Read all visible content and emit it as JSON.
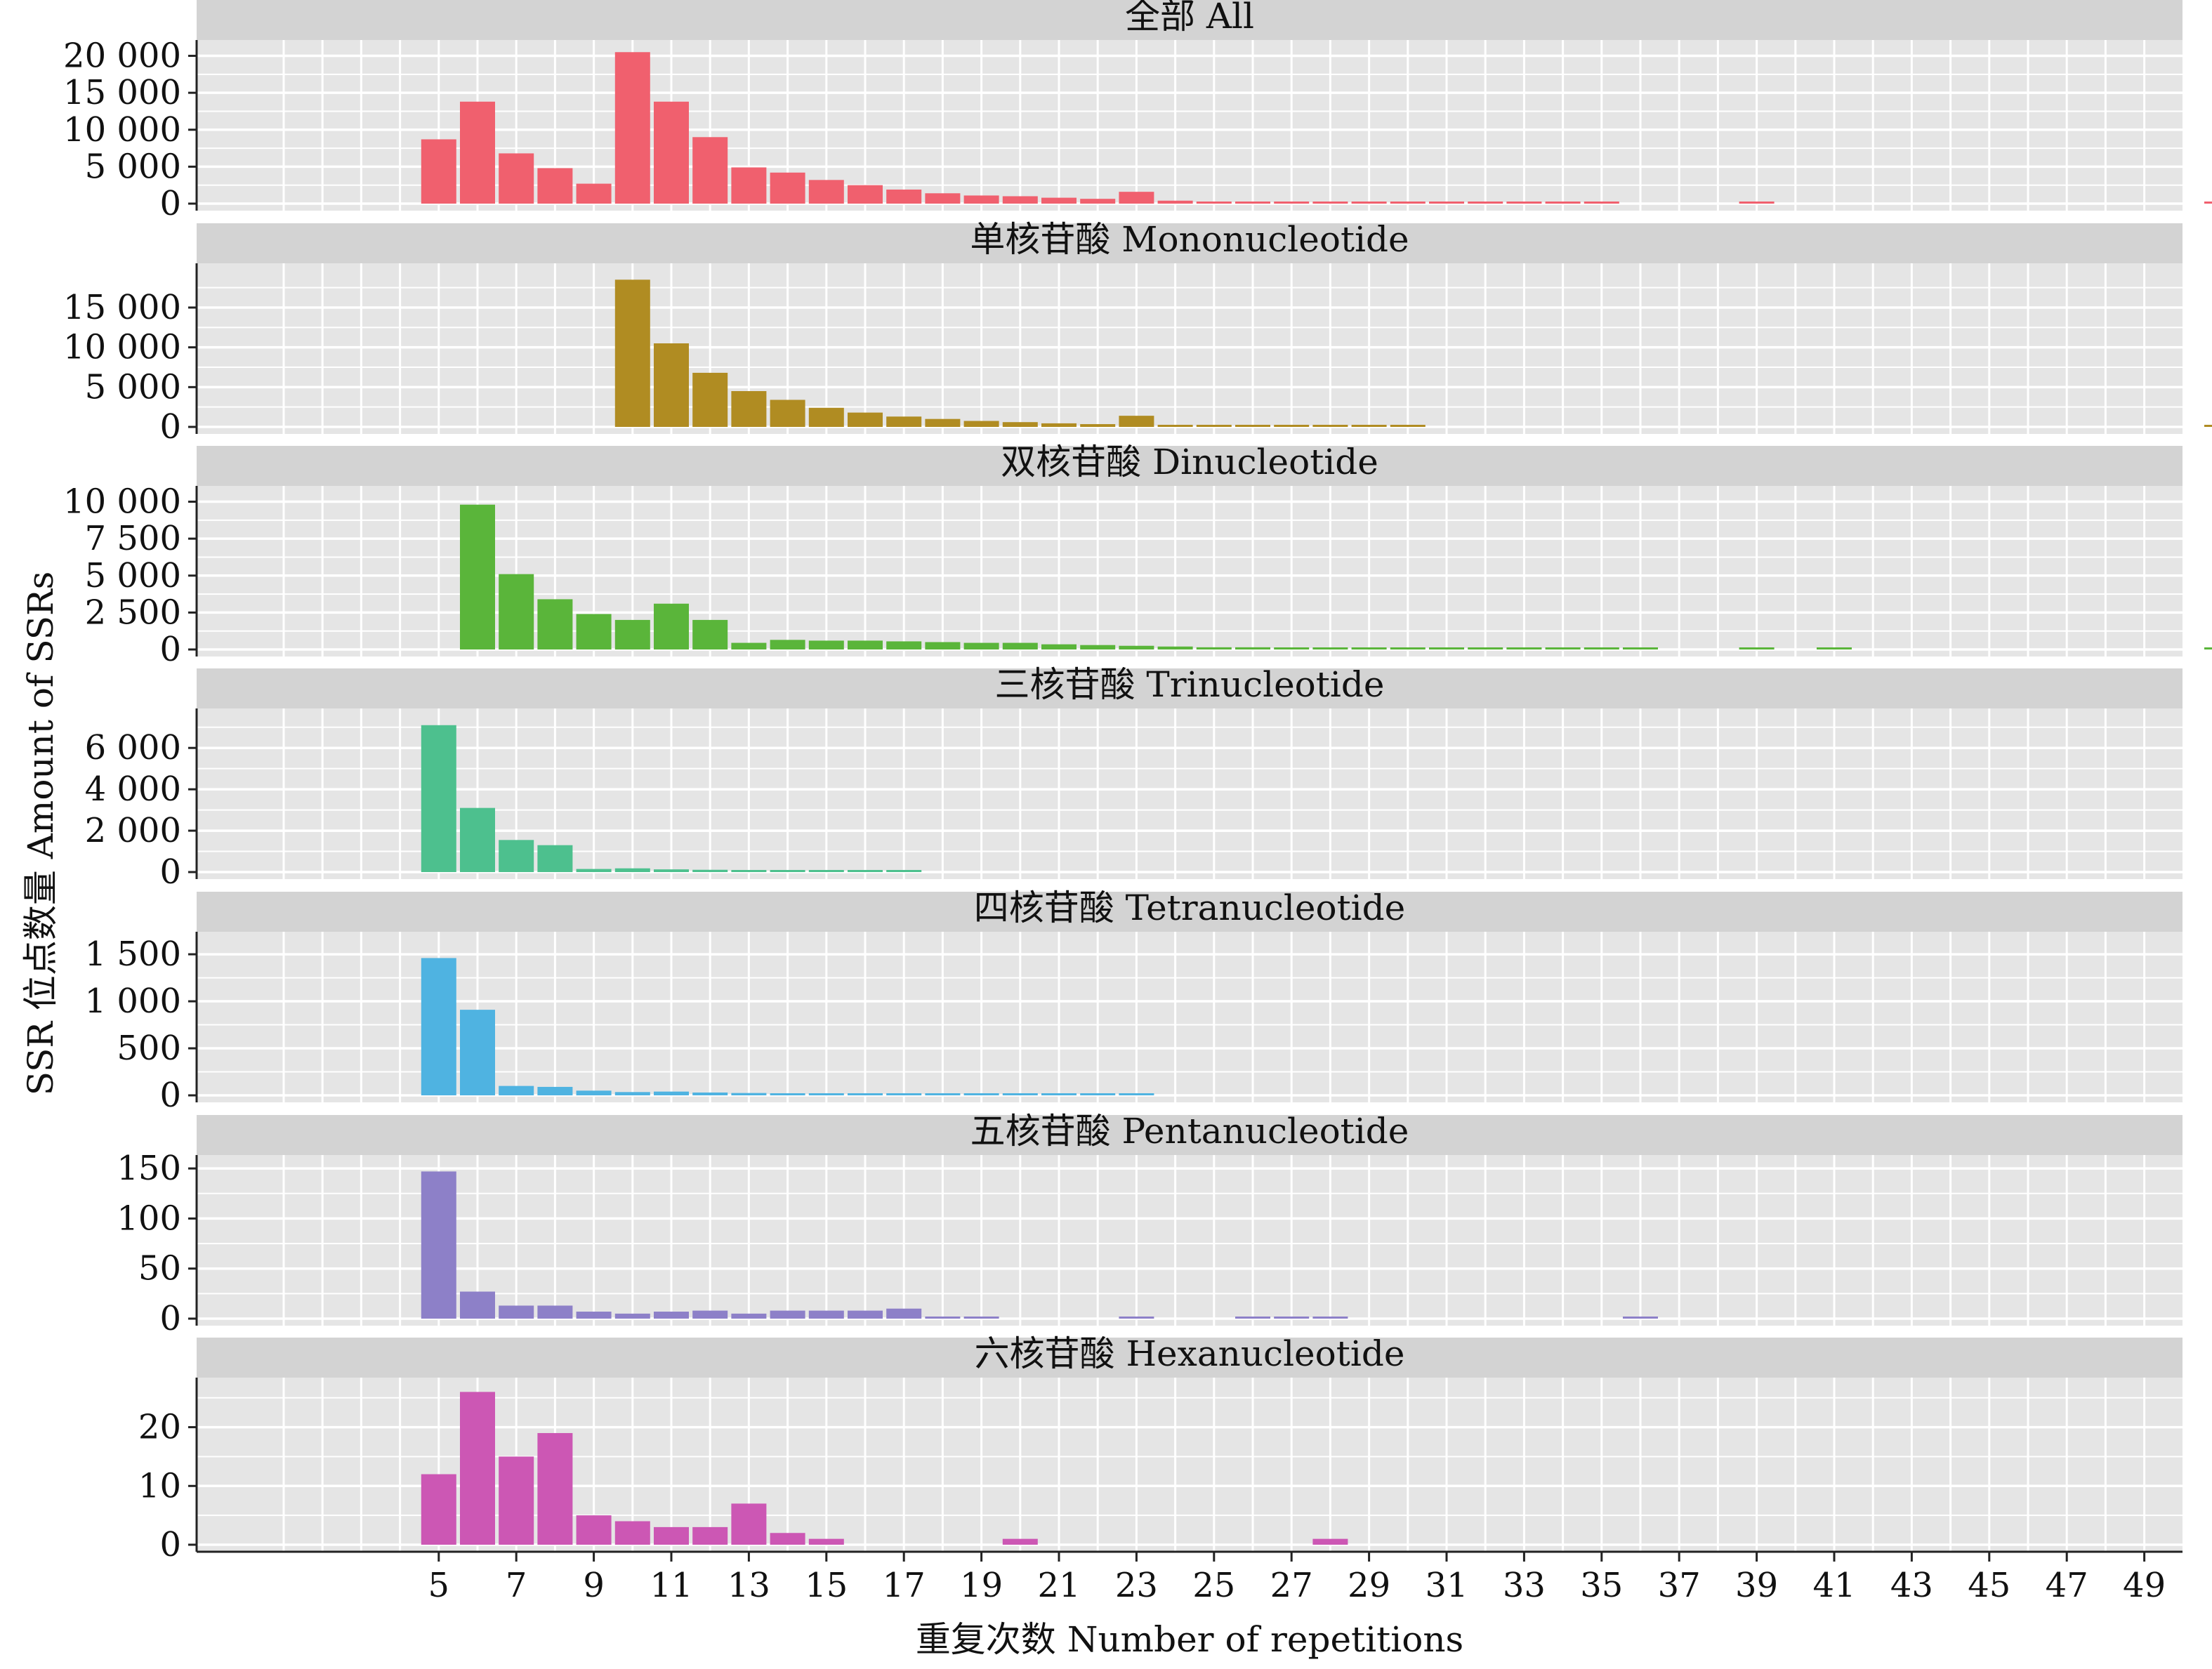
{
  "chart_data": {
    "type": "bar",
    "layout": "faceted, vertically stacked panels sharing the x axis",
    "xlabel": "重复次数 Number of repetitions",
    "ylabel": "SSR 位点数量  Amount of SSRs",
    "x_ticks": [
      5,
      7,
      9,
      11,
      13,
      15,
      17,
      19,
      21,
      23,
      25,
      27,
      29,
      31,
      33,
      35,
      37,
      39,
      41,
      43,
      45,
      47,
      49
    ],
    "x_extra_category_beyond_49": true,
    "grid": true,
    "panel_background": "#e5e5e5",
    "strip_background": "#d3d3d3",
    "panels": [
      {
        "title": "全部 All",
        "color": "#f0606e",
        "ylim": [
          0,
          21000
        ],
        "y_ticks": [
          0,
          5000,
          10000,
          15000,
          20000
        ],
        "y_tick_labels": [
          "0",
          "5 000",
          "10 000",
          "15 000",
          "20 000"
        ],
        "x": [
          5,
          6,
          7,
          8,
          9,
          10,
          11,
          12,
          13,
          14,
          15,
          16,
          17,
          18,
          19,
          20,
          21,
          22,
          23,
          24,
          25,
          26,
          27,
          28,
          29,
          30,
          31,
          32,
          33,
          34,
          35,
          39,
          51
        ],
        "values": [
          8700,
          13800,
          6800,
          4800,
          2700,
          20500,
          13800,
          9000,
          4900,
          4200,
          3200,
          2500,
          1900,
          1400,
          1100,
          1000,
          800,
          650,
          1600,
          400,
          250,
          200,
          180,
          150,
          120,
          100,
          80,
          60,
          50,
          40,
          30,
          20,
          250
        ]
      },
      {
        "title": "单核苷酸 Mononucleotide",
        "color": "#b08c22",
        "ylim": [
          0,
          19500
        ],
        "y_ticks": [
          0,
          5000,
          10000,
          15000
        ],
        "y_tick_labels": [
          "0",
          "5 000",
          "10 000",
          "15 000"
        ],
        "x": [
          10,
          11,
          12,
          13,
          14,
          15,
          16,
          17,
          18,
          19,
          20,
          21,
          22,
          23,
          24,
          25,
          26,
          27,
          28,
          29,
          30,
          51
        ],
        "values": [
          18500,
          10500,
          6800,
          4500,
          3400,
          2400,
          1800,
          1300,
          1000,
          750,
          600,
          450,
          350,
          1400,
          200,
          100,
          80,
          60,
          50,
          40,
          30,
          150
        ]
      },
      {
        "title": "双核苷酸  Dinucleotide",
        "color": "#5ab53a",
        "ylim": [
          0,
          10500
        ],
        "y_ticks": [
          0,
          2500,
          5000,
          7500,
          10000
        ],
        "y_tick_labels": [
          "0",
          "2 500",
          "5 000",
          "7 500",
          "10 000"
        ],
        "x": [
          6,
          7,
          8,
          9,
          10,
          11,
          12,
          13,
          14,
          15,
          16,
          17,
          18,
          19,
          20,
          21,
          22,
          23,
          24,
          25,
          26,
          27,
          28,
          29,
          30,
          31,
          32,
          33,
          34,
          35,
          36,
          39,
          41,
          51
        ],
        "values": [
          9800,
          5100,
          3400,
          2400,
          2000,
          3100,
          2000,
          450,
          650,
          600,
          600,
          550,
          500,
          450,
          450,
          350,
          300,
          250,
          200,
          150,
          150,
          120,
          100,
          90,
          80,
          70,
          60,
          50,
          50,
          40,
          30,
          30,
          30,
          80
        ]
      },
      {
        "title": "三核苷酸 Trinucleotide",
        "color": "#4dc08e",
        "ylim": [
          0,
          7500
        ],
        "y_ticks": [
          0,
          2000,
          4000,
          6000
        ],
        "y_tick_labels": [
          "0",
          "2 000",
          "4 000",
          "6 000"
        ],
        "x": [
          5,
          6,
          7,
          8,
          9,
          10,
          11,
          12,
          13,
          14,
          15,
          16,
          17
        ],
        "values": [
          7100,
          3100,
          1550,
          1300,
          150,
          180,
          130,
          110,
          90,
          70,
          50,
          40,
          30
        ]
      },
      {
        "title": "四核苷酸 Tetranucleotide",
        "color": "#4fb3e1",
        "ylim": [
          0,
          1650
        ],
        "y_ticks": [
          0,
          500,
          1000,
          1500
        ],
        "y_tick_labels": [
          "0",
          "500",
          "1 000",
          "1 500"
        ],
        "x": [
          5,
          6,
          7,
          8,
          9,
          10,
          11,
          12,
          13,
          14,
          15,
          16,
          17,
          18,
          19,
          20,
          21,
          22,
          23
        ],
        "values": [
          1460,
          910,
          100,
          90,
          50,
          35,
          40,
          30,
          25,
          20,
          15,
          20,
          10,
          8,
          6,
          5,
          4,
          3,
          2
        ]
      },
      {
        "title": "五核苷酸  Pentanucleotide",
        "color": "#8d80c8",
        "ylim": [
          0,
          155
        ],
        "y_ticks": [
          0,
          50,
          100,
          150
        ],
        "y_tick_labels": [
          "0",
          "50",
          "100",
          "150"
        ],
        "x": [
          5,
          6,
          7,
          8,
          9,
          10,
          11,
          12,
          13,
          14,
          15,
          16,
          17,
          18,
          19,
          23,
          26,
          27,
          28,
          36
        ],
        "values": [
          147,
          27,
          13,
          13,
          7,
          5,
          7,
          8,
          5,
          8,
          8,
          8,
          10,
          1,
          1,
          1,
          1,
          1,
          1,
          1
        ]
      },
      {
        "title": "六核苷酸 Hexanucleotide",
        "color": "#cc57b4",
        "ylim": [
          0,
          27
        ],
        "y_ticks": [
          0,
          10,
          20
        ],
        "y_tick_labels": [
          "0",
          "10",
          "20"
        ],
        "x": [
          5,
          6,
          7,
          8,
          9,
          10,
          11,
          12,
          13,
          14,
          15,
          20,
          28
        ],
        "values": [
          12,
          26,
          15,
          19,
          5,
          4,
          3,
          3,
          7,
          2,
          1,
          1,
          1
        ]
      }
    ]
  }
}
